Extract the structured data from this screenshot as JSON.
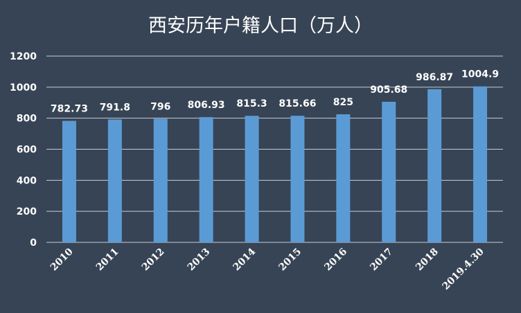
{
  "chart_data": {
    "type": "bar",
    "title": "西安历年户籍人口（万人）",
    "categories": [
      "2010",
      "2011",
      "2012",
      "2013",
      "2014",
      "2015",
      "2016",
      "2017",
      "2018",
      "2019.4.30"
    ],
    "values": [
      782.73,
      791.8,
      796,
      806.93,
      815.3,
      815.66,
      825,
      905.68,
      986.87,
      1004.9
    ],
    "value_labels": [
      "782.73",
      "791.8",
      "796",
      "806.93",
      "815.3",
      "815.66",
      "825",
      "905.68",
      "986.87",
      "1004.9"
    ],
    "y_ticks": [
      "0",
      "200",
      "400",
      "600",
      "800",
      "1000",
      "1200"
    ],
    "ylim": [
      0,
      1200
    ],
    "xlabel": "",
    "ylabel": "",
    "grid": true,
    "legend": "none",
    "colors": {
      "background": "#374455",
      "bar": "#5b9bd5",
      "text": "#ffffff",
      "grid": "#c9ced6"
    }
  }
}
